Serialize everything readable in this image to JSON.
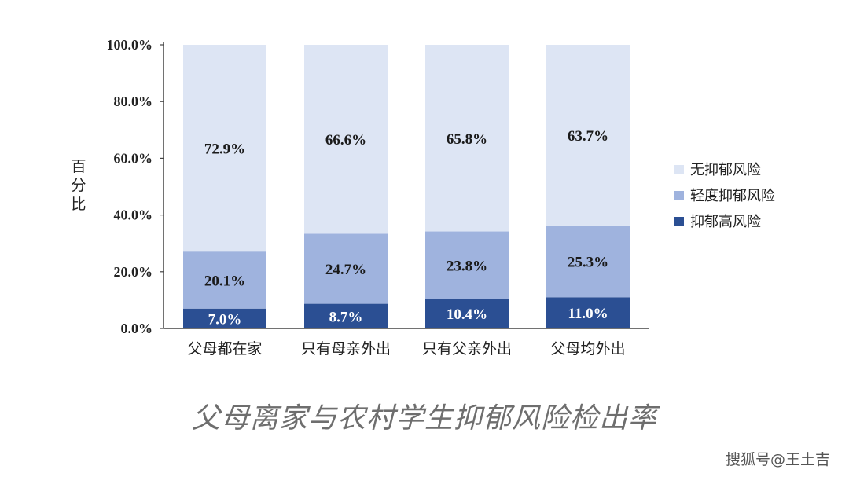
{
  "chart_data": {
    "type": "bar",
    "stacked": true,
    "categories": [
      "父母都在家",
      "只有母亲外出",
      "只有父亲外出",
      "父母均外出"
    ],
    "series": [
      {
        "name": "抑郁高风险",
        "values": [
          7.0,
          8.7,
          10.4,
          11.0
        ],
        "labels": [
          "7.0%",
          "8.7%",
          "10.4%",
          "11.0%"
        ],
        "color": "#2b4f93"
      },
      {
        "name": "轻度抑郁风险",
        "values": [
          20.1,
          24.7,
          23.8,
          25.3
        ],
        "labels": [
          "20.1%",
          "24.7%",
          "23.8%",
          "25.3%"
        ],
        "color": "#9fb3de"
      },
      {
        "name": "无抑郁风险",
        "values": [
          72.9,
          66.6,
          65.8,
          63.7
        ],
        "labels": [
          "72.9%",
          "66.6%",
          "65.8%",
          "63.7%"
        ],
        "color": "#dde5f4"
      }
    ],
    "legend_order": [
      2,
      1,
      0
    ],
    "legend_placement": "right",
    "ylabel": "百分比",
    "ylim": [
      0,
      100
    ],
    "yticks": [
      0,
      20,
      40,
      60,
      80,
      100
    ],
    "ytick_labels": [
      "0.0%",
      "20.0%",
      "40.0%",
      "60.0%",
      "80.0%",
      "100.0%"
    ],
    "grid": false
  },
  "caption": "父母离家与农村学生抑郁风险检出率",
  "watermark": "搜狐号@王土吉"
}
